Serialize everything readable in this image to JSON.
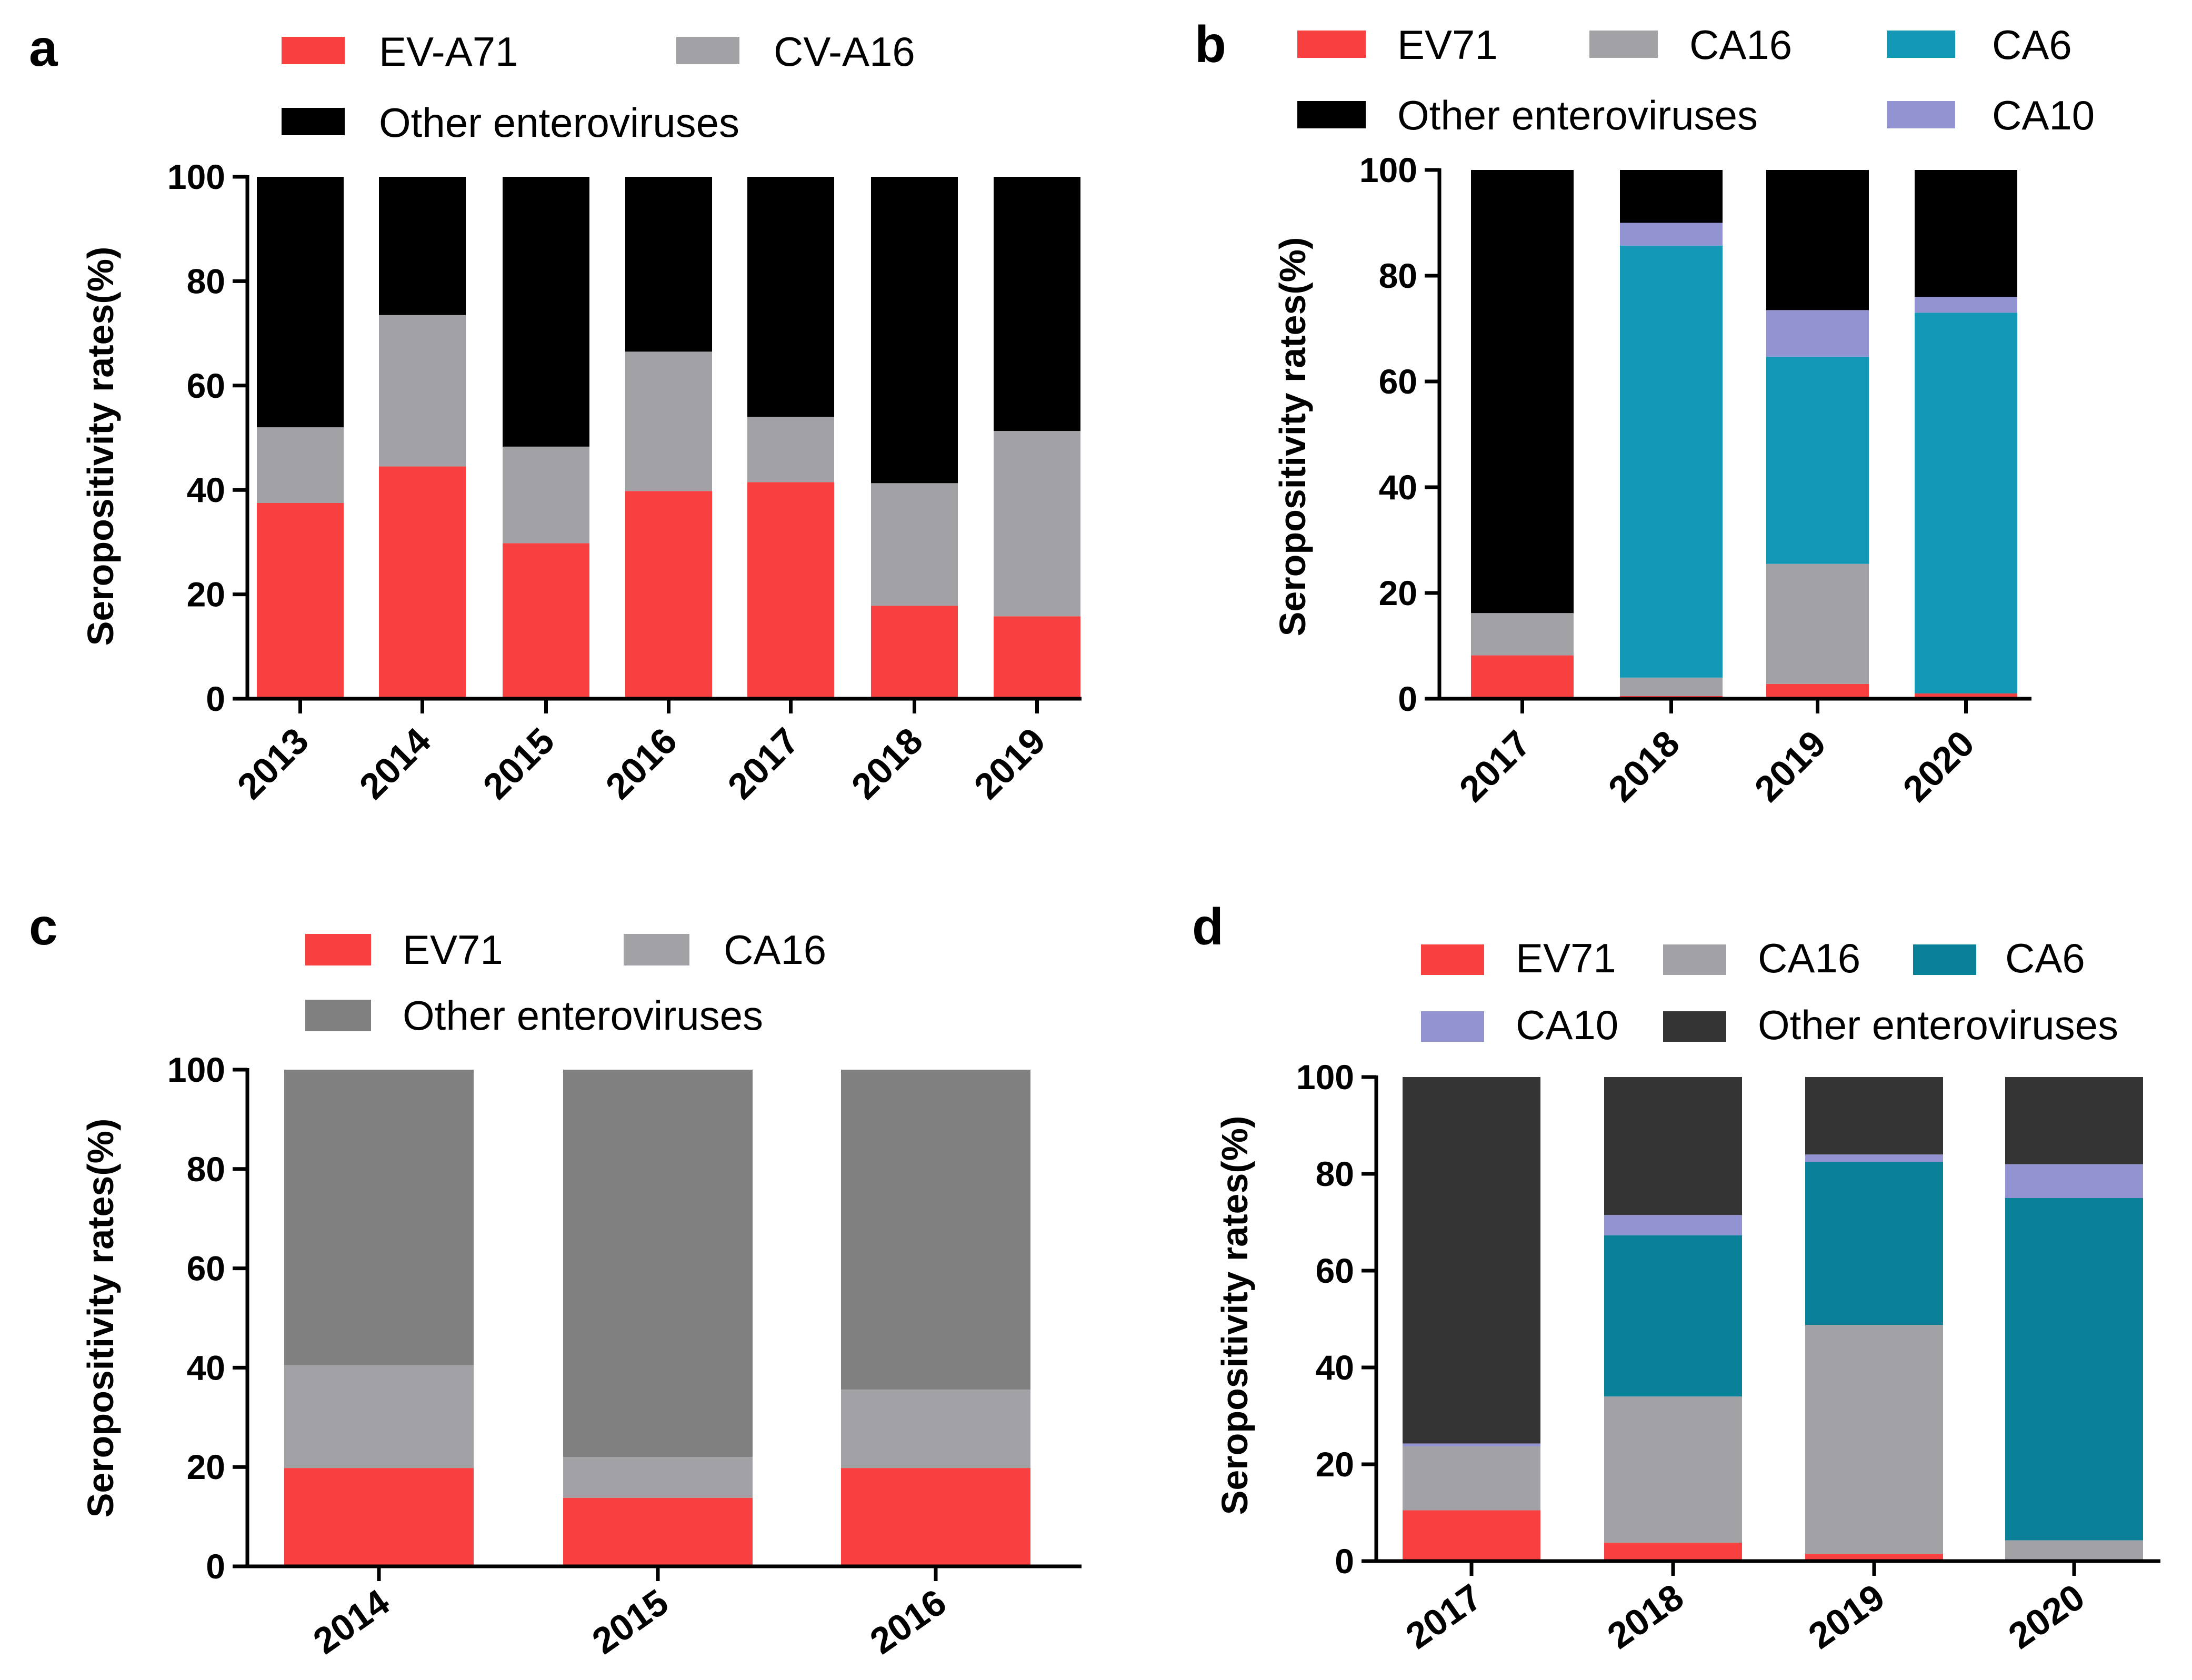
{
  "colors": {
    "red": "#f94040",
    "gray": "#a2a2a6",
    "black": "#000000",
    "teal_b": "#1298b4",
    "purple": "#9393d2",
    "darkgray_c": "#808080",
    "teal_d": "#0a7f98",
    "darkgray_d": "#343434"
  },
  "chart_data": [
    {
      "panel": "a",
      "type": "bar",
      "stacked": true,
      "ylabel": "Seropositivity rates(%)",
      "ylim": [
        0,
        100
      ],
      "yticks": [
        0,
        20,
        40,
        60,
        80,
        100
      ],
      "categories": [
        "2013",
        "2014",
        "2015",
        "2016",
        "2017",
        "2018",
        "2019"
      ],
      "legend": [
        "EV-A71",
        "CV-A16",
        "Other enteroviruses"
      ],
      "series": [
        {
          "name": "EV-A71",
          "color": "#f94040",
          "values": [
            37.5,
            44.5,
            29.8,
            39.8,
            41.5,
            17.8,
            15.8
          ]
        },
        {
          "name": "CV-A16",
          "color": "#a2a2a6",
          "values": [
            14.5,
            29.0,
            18.5,
            26.7,
            12.5,
            23.5,
            35.5
          ]
        },
        {
          "name": "Other enteroviruses",
          "color": "#000000",
          "values": [
            48.0,
            26.5,
            51.7,
            33.5,
            46.0,
            58.7,
            48.7
          ]
        }
      ]
    },
    {
      "panel": "b",
      "type": "bar",
      "stacked": true,
      "ylabel": "Seropositivity rates(%)",
      "ylim": [
        0,
        100
      ],
      "yticks": [
        0,
        20,
        40,
        60,
        80,
        100
      ],
      "categories": [
        "2017",
        "2018",
        "2019",
        "2020"
      ],
      "legend": [
        "EV71",
        "CA16",
        "CA6",
        "Other enteroviruses",
        "CA10"
      ],
      "series": [
        {
          "name": "EV71",
          "color": "#f94040",
          "values": [
            8.2,
            0.5,
            2.8,
            1.0
          ]
        },
        {
          "name": "CA16",
          "color": "#a2a2a6",
          "values": [
            8.0,
            3.5,
            22.7,
            0.0
          ]
        },
        {
          "name": "CA6",
          "color": "#1298b4",
          "values": [
            0.0,
            81.7,
            39.2,
            72.0
          ]
        },
        {
          "name": "CA10",
          "color": "#9393d2",
          "values": [
            0.0,
            4.3,
            8.8,
            3.0
          ]
        },
        {
          "name": "Other enteroviruses",
          "color": "#000000",
          "values": [
            83.8,
            10.0,
            26.5,
            24.0
          ]
        }
      ]
    },
    {
      "panel": "c",
      "type": "bar",
      "stacked": true,
      "ylabel": "Seropositivity rates(%)",
      "ylim": [
        0,
        100
      ],
      "yticks": [
        0,
        20,
        40,
        60,
        80,
        100
      ],
      "categories": [
        "2014",
        "2015",
        "2016"
      ],
      "legend": [
        "EV71",
        "CA16",
        "Other enteroviruses"
      ],
      "series": [
        {
          "name": "EV71",
          "color": "#f94040",
          "values": [
            19.8,
            13.8,
            19.8
          ]
        },
        {
          "name": "CA16",
          "color": "#a2a2a6",
          "values": [
            20.7,
            8.2,
            15.8
          ]
        },
        {
          "name": "Other enteroviruses",
          "color": "#808080",
          "values": [
            59.5,
            78.0,
            64.4
          ]
        }
      ]
    },
    {
      "panel": "d",
      "type": "bar",
      "stacked": true,
      "ylabel": "Seropositivity rates(%)",
      "ylim": [
        0,
        100
      ],
      "yticks": [
        0,
        20,
        40,
        60,
        80,
        100
      ],
      "categories": [
        "2017",
        "2018",
        "2019",
        "2020"
      ],
      "legend": [
        "EV71",
        "CA16",
        "CA6",
        "CA10",
        "Other enteroviruses"
      ],
      "series": [
        {
          "name": "EV71",
          "color": "#f94040",
          "values": [
            10.5,
            3.8,
            1.5,
            0.0
          ]
        },
        {
          "name": "CA16",
          "color": "#a2a2a6",
          "values": [
            13.2,
            30.2,
            47.3,
            4.3
          ]
        },
        {
          "name": "CA6",
          "color": "#0a7f98",
          "values": [
            0.0,
            33.3,
            33.7,
            70.7
          ]
        },
        {
          "name": "CA10",
          "color": "#9393d2",
          "values": [
            0.6,
            4.2,
            1.5,
            7.0
          ]
        },
        {
          "name": "Other enteroviruses",
          "color": "#343434",
          "values": [
            75.7,
            28.5,
            16.0,
            18.0
          ]
        }
      ]
    }
  ]
}
